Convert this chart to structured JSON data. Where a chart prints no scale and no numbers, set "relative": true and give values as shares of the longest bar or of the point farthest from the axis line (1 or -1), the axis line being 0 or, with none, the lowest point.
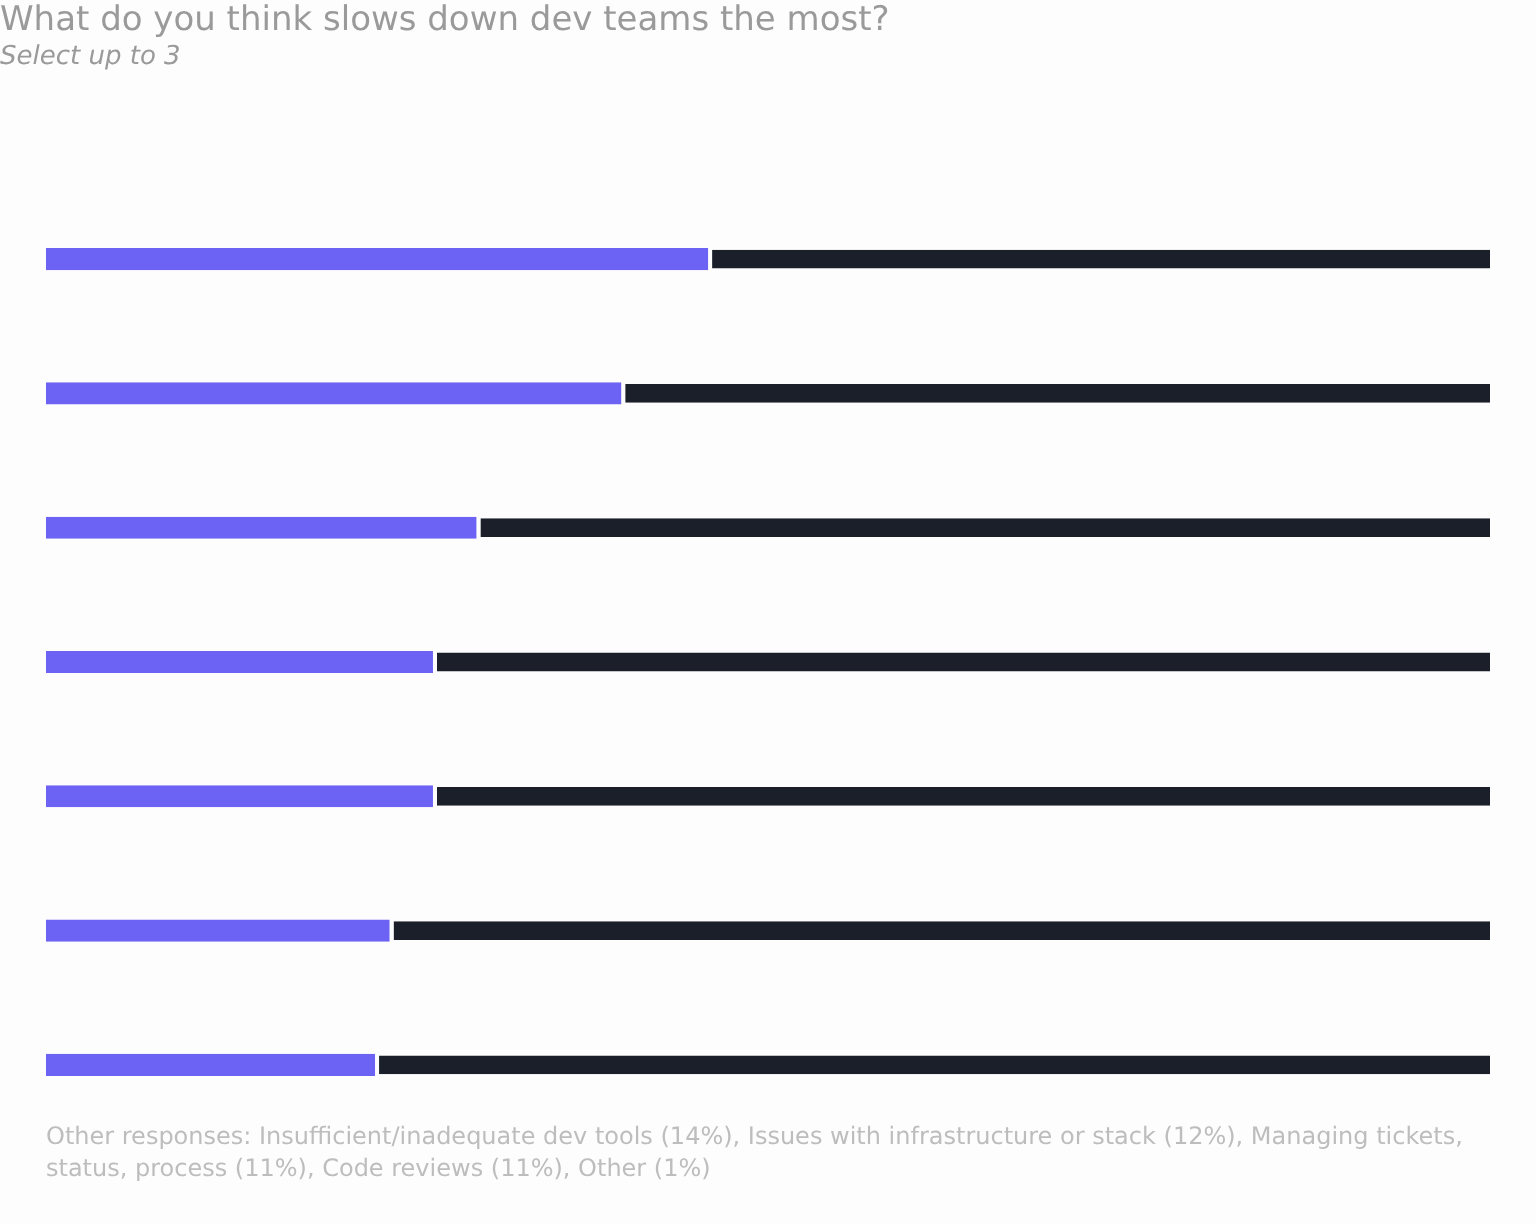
{
  "chart_data": {
    "type": "bar",
    "orientation": "horizontal",
    "stacked": true,
    "relative": true,
    "title": "What do you think slows down dev teams the most?",
    "subtitle": "Select up to 3",
    "categories": [
      null,
      null,
      null,
      null,
      null,
      null,
      null
    ],
    "series": [
      {
        "color": "#6c63f5",
        "values": [
          0.46,
          0.4,
          0.3,
          0.27,
          0.27,
          0.24,
          0.23
        ]
      },
      {
        "color": "#1b1f29",
        "values": [
          0.54,
          0.6,
          0.7,
          0.73,
          0.73,
          0.76,
          0.77
        ]
      }
    ],
    "legend": false,
    "annotations": [
      "Other responses: Insufficient/inadequate dev tools (14%), Issues with infrastructure or stack (12%), Managing tickets, status, process (11%), Code reviews (11%), Other (1%)"
    ]
  }
}
